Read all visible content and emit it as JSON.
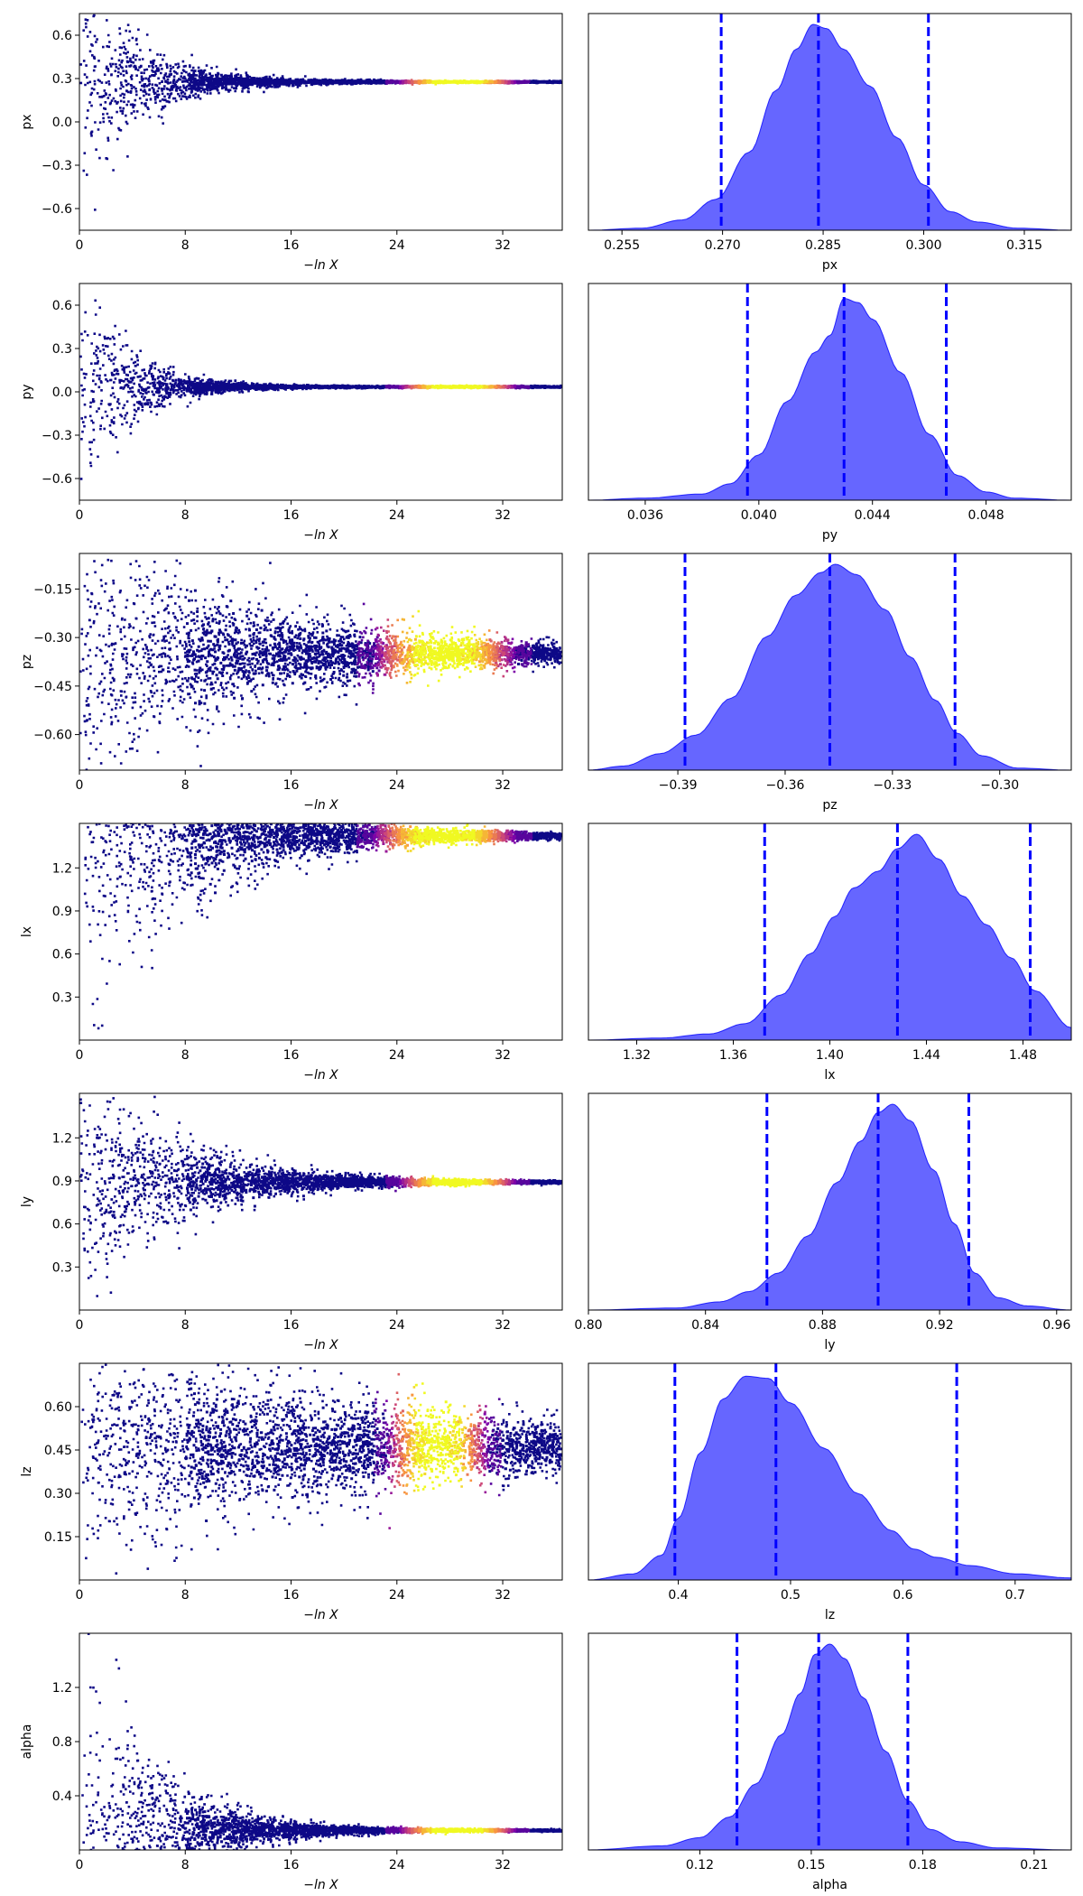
{
  "figure": {
    "trace_xlabel": "−ln X",
    "colormap": [
      "#0d0887",
      "#7e03a8",
      "#cc4778",
      "#f89540",
      "#f0f921"
    ],
    "kde_fill_color": "#0000ff",
    "kde_fill_opacity": 0.6,
    "marker_color": "#0000ff"
  },
  "chart_data": [
    {
      "type": "scatter",
      "param": "px",
      "ylabel": "px",
      "xlim": [
        0,
        36.5
      ],
      "ylim": [
        -0.75,
        0.75
      ],
      "xticks": [
        0,
        8,
        16,
        24,
        32
      ],
      "yticks": [
        -0.6,
        -0.3,
        0.0,
        0.3,
        0.6
      ],
      "ytick_labels": [
        "−0.6",
        "−0.3",
        "0.0",
        "0.3",
        "0.6"
      ],
      "converged_value": 0.285,
      "spread_initial": 0.75,
      "decay_rate": 0.24,
      "hot_region": [
        24,
        33
      ]
    },
    {
      "type": "area",
      "param": "px",
      "xlabel": "px",
      "xlim": [
        0.25,
        0.322
      ],
      "xticks": [
        0.255,
        0.27,
        0.285,
        0.3,
        0.315
      ],
      "xtick_labels": [
        "0.255",
        "0.270",
        "0.285",
        "0.300",
        "0.315"
      ],
      "quantile_lines": [
        0.2698,
        0.2843,
        0.3007
      ],
      "density": {
        "x": [
          0.25,
          0.258,
          0.264,
          0.269,
          0.274,
          0.278,
          0.281,
          0.2835,
          0.2855,
          0.288,
          0.292,
          0.296,
          0.3,
          0.304,
          0.308,
          0.314,
          0.322
        ],
        "y": [
          0.0,
          0.01,
          0.05,
          0.15,
          0.38,
          0.68,
          0.88,
          1.0,
          0.98,
          0.88,
          0.7,
          0.45,
          0.22,
          0.09,
          0.04,
          0.01,
          0.0
        ]
      }
    },
    {
      "type": "scatter",
      "param": "py",
      "ylabel": "py",
      "xlim": [
        0,
        36.5
      ],
      "ylim": [
        -0.75,
        0.75
      ],
      "xticks": [
        0,
        8,
        16,
        24,
        32
      ],
      "yticks": [
        -0.6,
        -0.3,
        0.0,
        0.3,
        0.6
      ],
      "ytick_labels": [
        "−0.6",
        "−0.3",
        "0.0",
        "0.3",
        "0.6"
      ],
      "converged_value": 0.043,
      "spread_initial": 0.75,
      "decay_rate": 0.3,
      "hot_region": [
        24,
        33
      ]
    },
    {
      "type": "area",
      "param": "py",
      "xlabel": "py",
      "xlim": [
        0.034,
        0.051
      ],
      "xticks": [
        0.036,
        0.04,
        0.044,
        0.048
      ],
      "xtick_labels": [
        "0.036",
        "0.040",
        "0.044",
        "0.048"
      ],
      "quantile_lines": [
        0.0396,
        0.043,
        0.0466
      ],
      "density": {
        "x": [
          0.034,
          0.036,
          0.038,
          0.039,
          0.04,
          0.041,
          0.042,
          0.0425,
          0.043,
          0.0435,
          0.044,
          0.045,
          0.046,
          0.047,
          0.048,
          0.049,
          0.051
        ],
        "y": [
          0.0,
          0.01,
          0.03,
          0.08,
          0.22,
          0.48,
          0.72,
          0.8,
          0.98,
          0.96,
          0.88,
          0.62,
          0.32,
          0.12,
          0.04,
          0.01,
          0.0
        ]
      }
    },
    {
      "type": "scatter",
      "param": "pz",
      "ylabel": "pz",
      "xlim": [
        0,
        36.5
      ],
      "ylim": [
        -0.71,
        -0.04
      ],
      "xticks": [
        0,
        8,
        16,
        24,
        32
      ],
      "yticks": [
        -0.6,
        -0.45,
        -0.3,
        -0.15
      ],
      "ytick_labels": [
        "−0.60",
        "−0.45",
        "−0.30",
        "−0.15"
      ],
      "converged_value": -0.346,
      "spread_initial": 0.36,
      "decay_rate": 0.07,
      "hot_region": [
        22,
        33
      ]
    },
    {
      "type": "area",
      "param": "pz",
      "xlabel": "pz",
      "xlim": [
        -0.415,
        -0.28
      ],
      "xticks": [
        -0.39,
        -0.36,
        -0.33,
        -0.3
      ],
      "xtick_labels": [
        "−0.39",
        "−0.36",
        "−0.33",
        "−0.30"
      ],
      "quantile_lines": [
        -0.388,
        -0.3475,
        -0.3125
      ],
      "density": {
        "x": [
          -0.415,
          -0.405,
          -0.395,
          -0.385,
          -0.375,
          -0.365,
          -0.357,
          -0.35,
          -0.346,
          -0.34,
          -0.332,
          -0.325,
          -0.318,
          -0.312,
          -0.305,
          -0.295,
          -0.28
        ],
        "y": [
          0.0,
          0.02,
          0.08,
          0.17,
          0.35,
          0.65,
          0.85,
          0.96,
          1.0,
          0.95,
          0.78,
          0.55,
          0.34,
          0.18,
          0.07,
          0.01,
          0.0
        ]
      }
    },
    {
      "type": "scatter",
      "param": "lx",
      "ylabel": "lx",
      "xlim": [
        0,
        36.5
      ],
      "ylim": [
        0.0,
        1.51
      ],
      "xticks": [
        0,
        8,
        16,
        24,
        32
      ],
      "yticks": [
        0.3,
        0.6,
        0.9,
        1.2
      ],
      "ytick_labels": [
        "0.3",
        "0.6",
        "0.9",
        "1.2"
      ],
      "converged_value": 1.43,
      "spread_initial": 1.2,
      "decay_rate": 0.12,
      "hot_region": [
        22,
        33
      ]
    },
    {
      "type": "area",
      "param": "lx",
      "xlabel": "lx",
      "xlim": [
        1.3,
        1.5
      ],
      "xticks": [
        1.32,
        1.36,
        1.4,
        1.44,
        1.48
      ],
      "xtick_labels": [
        "1.32",
        "1.36",
        "1.40",
        "1.44",
        "1.48"
      ],
      "quantile_lines": [
        1.373,
        1.428,
        1.483
      ],
      "density": {
        "x": [
          1.3,
          1.33,
          1.35,
          1.365,
          1.38,
          1.392,
          1.402,
          1.41,
          1.42,
          1.428,
          1.436,
          1.445,
          1.455,
          1.465,
          1.475,
          1.485,
          1.5
        ],
        "y": [
          0.0,
          0.01,
          0.03,
          0.08,
          0.22,
          0.42,
          0.6,
          0.74,
          0.82,
          0.93,
          1.0,
          0.88,
          0.7,
          0.56,
          0.4,
          0.24,
          0.06
        ]
      }
    },
    {
      "type": "scatter",
      "param": "ly",
      "ylabel": "ly",
      "xlim": [
        0,
        36.5
      ],
      "ylim": [
        0.0,
        1.51
      ],
      "xticks": [
        0,
        8,
        16,
        24,
        32
      ],
      "yticks": [
        0.3,
        0.6,
        0.9,
        1.2
      ],
      "ytick_labels": [
        "0.3",
        "0.6",
        "0.9",
        "1.2"
      ],
      "converged_value": 0.9,
      "spread_initial": 0.75,
      "decay_rate": 0.14,
      "hot_region": [
        24,
        33
      ]
    },
    {
      "type": "area",
      "param": "ly",
      "xlabel": "ly",
      "xlim": [
        0.8,
        0.965
      ],
      "xticks": [
        0.8,
        0.84,
        0.88,
        0.92,
        0.96
      ],
      "xtick_labels": [
        "0.80",
        "0.84",
        "0.88",
        "0.92",
        "0.96"
      ],
      "quantile_lines": [
        0.861,
        0.899,
        0.93
      ],
      "density": {
        "x": [
          0.8,
          0.83,
          0.845,
          0.855,
          0.865,
          0.875,
          0.885,
          0.893,
          0.899,
          0.904,
          0.91,
          0.918,
          0.925,
          0.932,
          0.94,
          0.95,
          0.965
        ],
        "y": [
          0.0,
          0.01,
          0.04,
          0.09,
          0.18,
          0.36,
          0.62,
          0.82,
          0.96,
          1.0,
          0.92,
          0.68,
          0.42,
          0.18,
          0.06,
          0.02,
          0.0
        ]
      }
    },
    {
      "type": "scatter",
      "param": "lz",
      "ylabel": "lz",
      "xlim": [
        0,
        36.5
      ],
      "ylim": [
        0.0,
        0.75
      ],
      "xticks": [
        0,
        8,
        16,
        24,
        32
      ],
      "yticks": [
        0.15,
        0.3,
        0.45,
        0.6
      ],
      "ytick_labels": [
        "0.15",
        "0.30",
        "0.45",
        "0.60"
      ],
      "converged_value": 0.465,
      "spread_initial": 0.36,
      "decay_rate": 0.04,
      "hot_region": [
        23,
        31
      ]
    },
    {
      "type": "area",
      "param": "lz",
      "xlabel": "lz",
      "xlim": [
        0.32,
        0.75
      ],
      "xticks": [
        0.4,
        0.5,
        0.6,
        0.7
      ],
      "xtick_labels": [
        "0.4",
        "0.5",
        "0.6",
        "0.7"
      ],
      "quantile_lines": [
        0.397,
        0.487,
        0.648
      ],
      "density": {
        "x": [
          0.32,
          0.36,
          0.385,
          0.4,
          0.42,
          0.44,
          0.46,
          0.48,
          0.5,
          0.53,
          0.56,
          0.59,
          0.61,
          0.63,
          0.66,
          0.7,
          0.75
        ],
        "y": [
          0.0,
          0.03,
          0.12,
          0.3,
          0.62,
          0.88,
          0.99,
          0.98,
          0.86,
          0.64,
          0.42,
          0.24,
          0.15,
          0.11,
          0.07,
          0.03,
          0.01
        ]
      }
    },
    {
      "type": "scatter",
      "param": "alpha",
      "ylabel": "alpha",
      "xlim": [
        0,
        36.5
      ],
      "ylim": [
        0.0,
        1.6
      ],
      "xticks": [
        0,
        8,
        16,
        24,
        32
      ],
      "yticks": [
        0.4,
        0.8,
        1.2
      ],
      "ytick_labels": [
        "0.4",
        "0.8",
        "1.2"
      ],
      "converged_value": 0.153,
      "spread_initial": 1.5,
      "decay_rate": 0.2,
      "hot_region": [
        24,
        33
      ]
    },
    {
      "type": "area",
      "param": "alpha",
      "xlabel": "alpha",
      "xlim": [
        0.09,
        0.22
      ],
      "xticks": [
        0.12,
        0.15,
        0.18,
        0.21
      ],
      "xtick_labels": [
        "0.12",
        "0.15",
        "0.18",
        "0.21"
      ],
      "quantile_lines": [
        0.13,
        0.152,
        0.176
      ],
      "density": {
        "x": [
          0.09,
          0.11,
          0.12,
          0.128,
          0.135,
          0.142,
          0.147,
          0.151,
          0.155,
          0.159,
          0.164,
          0.17,
          0.176,
          0.182,
          0.19,
          0.2,
          0.22
        ],
        "y": [
          0.0,
          0.02,
          0.06,
          0.16,
          0.32,
          0.56,
          0.76,
          0.95,
          1.0,
          0.93,
          0.74,
          0.48,
          0.24,
          0.1,
          0.04,
          0.01,
          0.0
        ]
      }
    }
  ]
}
